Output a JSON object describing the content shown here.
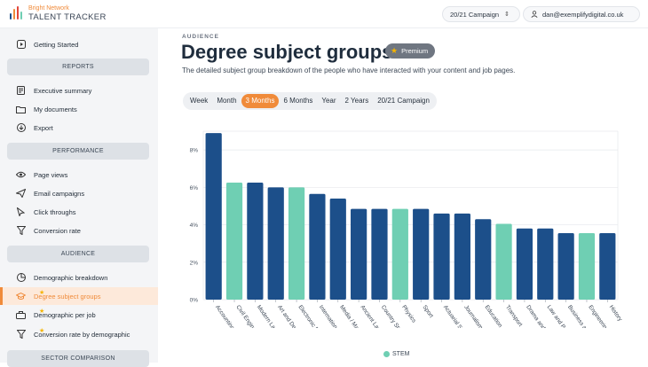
{
  "app": {
    "brand_top": "Bright Network",
    "brand_main": "TALENT TRACKER",
    "campaign_selector": "20/21 Campaign",
    "user_email": "dan@exemplifydigital.co.uk"
  },
  "sidebar": {
    "getting_started": "Getting Started",
    "sections": {
      "reports": "REPORTS",
      "performance": "PERFORMANCE",
      "audience": "AUDIENCE",
      "sector": "SECTOR COMPARISON"
    },
    "reports": [
      "Executive summary",
      "My documents",
      "Export"
    ],
    "performance": [
      "Page views",
      "Email campaigns",
      "Click throughs",
      "Conversion rate"
    ],
    "audience": [
      "Demographic breakdown",
      "Degree subject groups",
      "Demographic per job",
      "Conversion rate by demographic"
    ]
  },
  "main": {
    "eyebrow": "AUDIENCE",
    "title": "Degree subject groups",
    "premium": "Premium",
    "subtitle": "The detailed subject group breakdown of the people who have interacted with your content and job pages.",
    "tabs": [
      "Week",
      "Month",
      "3 Months",
      "6 Months",
      "Year",
      "2 Years",
      "20/21 Campaign"
    ],
    "active_tab": "3 Months"
  },
  "colors": {
    "accent": "#f08b3a",
    "bar_default": "#1c4f8a",
    "bar_stem": "#6fcfb3"
  },
  "chart_data": {
    "type": "bar",
    "categories": [
      "Accounting",
      "Civil Engineering",
      "Modern Languages",
      "Art and Design",
      "Electronic Engineering",
      "International Relations",
      "Media / Marketing / PR",
      "Ancient Languages",
      "Country Studies",
      "Physics",
      "Sport",
      "Actuarial Science",
      "Journalism",
      "Education",
      "Transport",
      "Drama and Film",
      "Law and Politics",
      "Business and Management",
      "Engineering",
      "History"
    ],
    "values": [
      8.9,
      6.25,
      6.25,
      6.0,
      6.0,
      5.65,
      5.4,
      4.85,
      4.85,
      4.85,
      4.85,
      4.6,
      4.6,
      4.3,
      4.05,
      3.8,
      3.8,
      3.55,
      3.55,
      3.55
    ],
    "stem": [
      false,
      true,
      false,
      false,
      true,
      false,
      false,
      false,
      false,
      true,
      false,
      false,
      false,
      false,
      true,
      false,
      false,
      false,
      true,
      false
    ],
    "ylim": [
      0,
      9
    ],
    "yticks": [
      "0%",
      "2%",
      "4%",
      "6%",
      "8%"
    ],
    "legend": "STEM",
    "legend_position": "bottom"
  }
}
